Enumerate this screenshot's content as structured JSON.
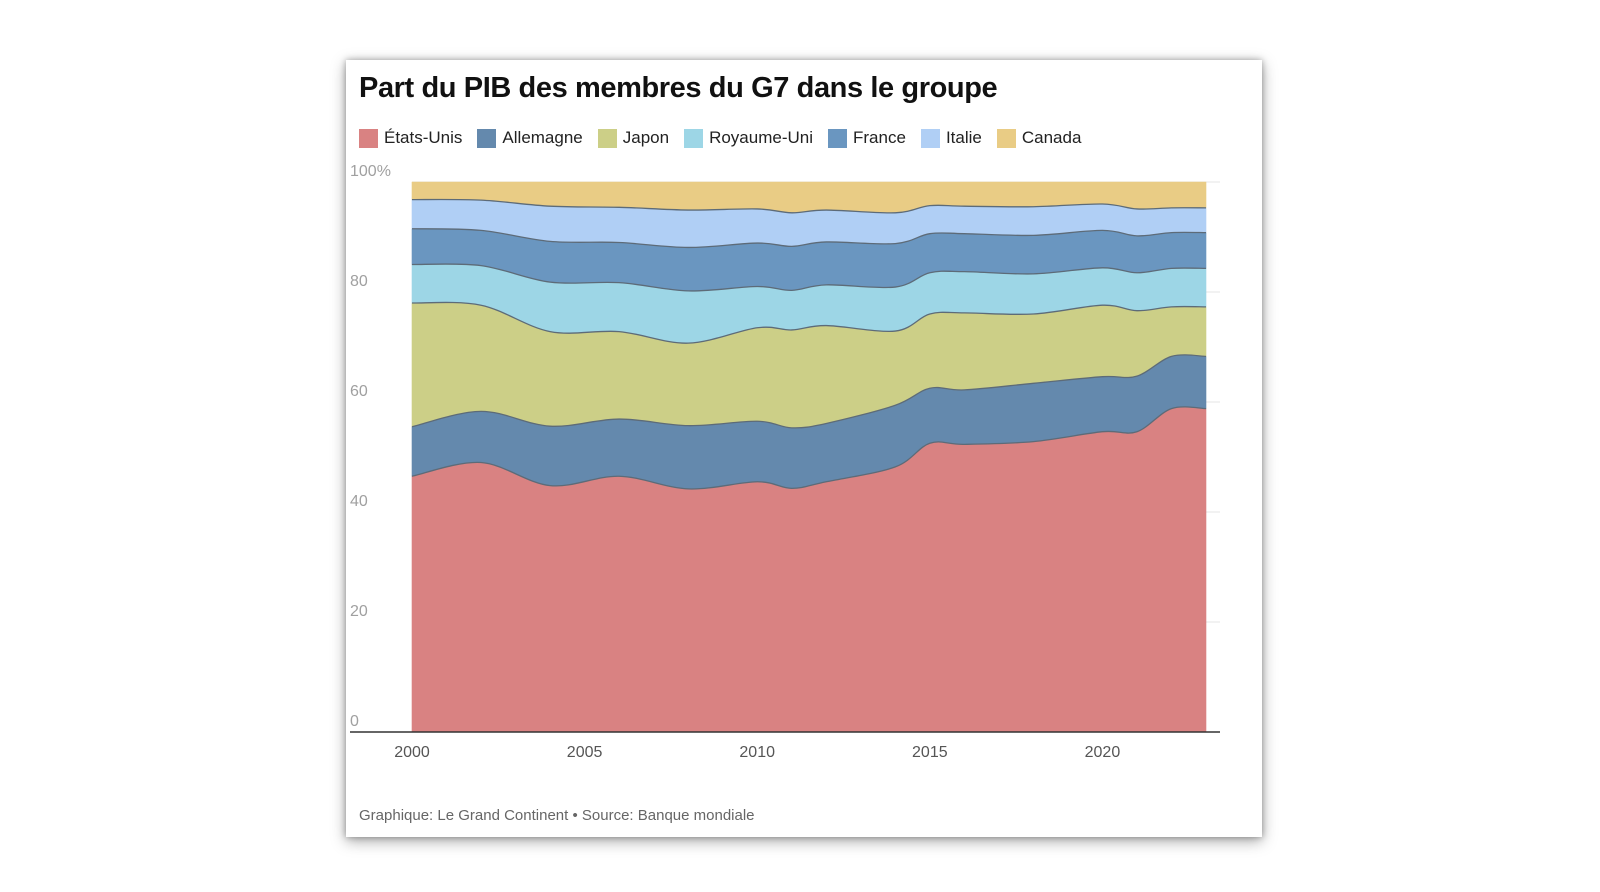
{
  "title": "Part du PIB des membres du G7 dans le groupe",
  "footer": "Graphique: Le Grand Continent • Source: Banque mondiale",
  "chart_data": {
    "type": "area",
    "stacked": true,
    "x": [
      2000,
      2002,
      2004,
      2006,
      2008,
      2010,
      2011,
      2012,
      2014,
      2015,
      2016,
      2018,
      2020,
      2021,
      2022,
      2023
    ],
    "series": [
      {
        "name": "États-Unis",
        "color": "#d98282",
        "values": [
          46.5,
          49.0,
          44.8,
          46.5,
          44.2,
          45.5,
          44.3,
          45.5,
          48.2,
          52.5,
          52.3,
          52.8,
          54.6,
          54.6,
          58.8,
          58.8
        ]
      },
      {
        "name": "Allemagne",
        "color": "#6489ad",
        "values": [
          9.0,
          9.3,
          10.8,
          10.4,
          11.5,
          11.0,
          11.0,
          10.6,
          11.2,
          10.0,
          9.9,
          10.6,
          10.0,
          10.1,
          9.5,
          9.5
        ]
      },
      {
        "name": "Japon",
        "color": "#cccf87",
        "values": [
          22.5,
          19.3,
          17.2,
          15.9,
          15.0,
          17.0,
          17.8,
          17.8,
          13.5,
          13.5,
          14.0,
          12.6,
          13.0,
          11.9,
          9.0,
          9.0
        ]
      },
      {
        "name": "Royaume-Uni",
        "color": "#9dd6e6",
        "values": [
          7.0,
          7.2,
          9.0,
          8.9,
          9.5,
          7.5,
          7.2,
          7.4,
          8.0,
          7.5,
          7.5,
          7.3,
          6.8,
          6.9,
          7.0,
          7.0
        ]
      },
      {
        "name": "France",
        "color": "#6a96c0",
        "values": [
          6.5,
          6.4,
          7.4,
          7.3,
          7.9,
          7.9,
          8.0,
          7.8,
          7.9,
          7.1,
          6.9,
          7.0,
          6.8,
          6.7,
          6.5,
          6.5
        ]
      },
      {
        "name": "Italie",
        "color": "#b0cff5",
        "values": [
          5.3,
          5.5,
          6.4,
          6.4,
          6.8,
          6.2,
          6.1,
          5.8,
          5.6,
          5.1,
          5.0,
          5.2,
          4.8,
          4.9,
          4.5,
          4.5
        ]
      },
      {
        "name": "Canada",
        "color": "#e9cc85",
        "values": [
          3.2,
          3.3,
          4.4,
          4.6,
          5.1,
          4.9,
          5.6,
          5.1,
          5.6,
          4.3,
          4.4,
          4.5,
          4.0,
          4.9,
          4.7,
          4.7
        ]
      }
    ],
    "y_ticks": [
      "0",
      "20",
      "40",
      "60",
      "80",
      "100%"
    ],
    "x_ticks": [
      "2000",
      "2005",
      "2010",
      "2015",
      "2020"
    ],
    "xlim": [
      2000,
      2023
    ],
    "ylim": [
      0,
      100
    ],
    "grid": "horizontal",
    "legend": "top-left"
  }
}
